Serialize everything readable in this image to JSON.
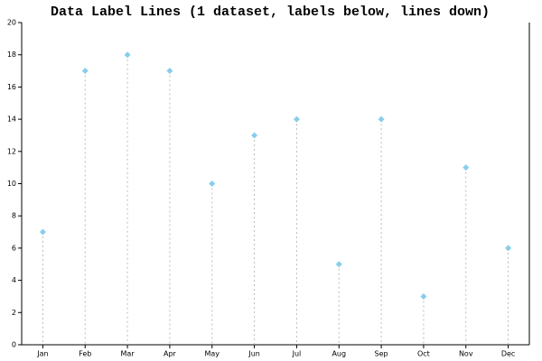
{
  "chart_data": {
    "type": "point",
    "title": "Data Label Lines (1 dataset, labels below, lines down)",
    "categories": [
      "Jan",
      "Feb",
      "Mar",
      "Apr",
      "May",
      "Jun",
      "Jul",
      "Aug",
      "Sep",
      "Oct",
      "Nov",
      "Dec"
    ],
    "values": [
      7,
      17,
      18,
      17,
      10,
      13,
      14,
      5,
      14,
      3,
      11,
      6
    ],
    "color": "#87ceeb",
    "ylim": [
      0,
      20
    ],
    "yticks": [
      0,
      2,
      4,
      6,
      8,
      10,
      12,
      14,
      16,
      18,
      20
    ],
    "drop_lines": true
  }
}
